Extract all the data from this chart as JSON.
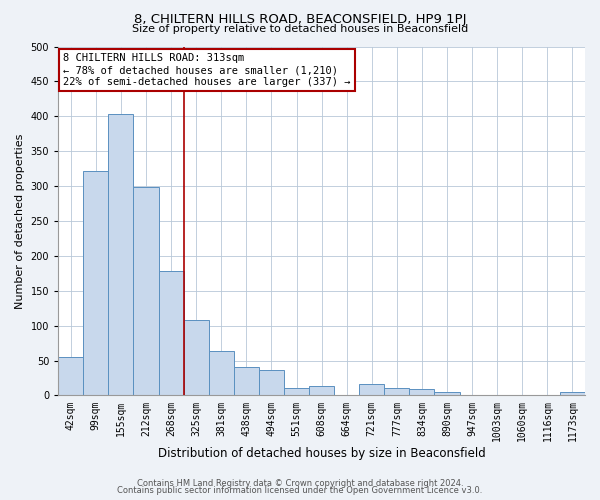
{
  "title": "8, CHILTERN HILLS ROAD, BEACONSFIELD, HP9 1PJ",
  "subtitle": "Size of property relative to detached houses in Beaconsfield",
  "xlabel": "Distribution of detached houses by size in Beaconsfield",
  "ylabel": "Number of detached properties",
  "bar_labels": [
    "42sqm",
    "99sqm",
    "155sqm",
    "212sqm",
    "268sqm",
    "325sqm",
    "381sqm",
    "438sqm",
    "494sqm",
    "551sqm",
    "608sqm",
    "664sqm",
    "721sqm",
    "777sqm",
    "834sqm",
    "890sqm",
    "947sqm",
    "1003sqm",
    "1060sqm",
    "1116sqm",
    "1173sqm"
  ],
  "bar_values": [
    55,
    322,
    403,
    298,
    178,
    108,
    63,
    41,
    37,
    10,
    13,
    1,
    16,
    10,
    9,
    5,
    1,
    0,
    1,
    0,
    5
  ],
  "bar_color": "#c8d8ec",
  "bar_edge_color": "#5a90c0",
  "vline_color": "#aa0000",
  "vline_pos": 4.5,
  "annotation_line1": "8 CHILTERN HILLS ROAD: 313sqm",
  "annotation_line2": "← 78% of detached houses are smaller (1,210)",
  "annotation_line3": "22% of semi-detached houses are larger (337) →",
  "annotation_box_edge_color": "#aa0000",
  "ylim": [
    0,
    500
  ],
  "yticks": [
    0,
    50,
    100,
    150,
    200,
    250,
    300,
    350,
    400,
    450,
    500
  ],
  "footer1": "Contains HM Land Registry data © Crown copyright and database right 2024.",
  "footer2": "Contains public sector information licensed under the Open Government Licence v3.0.",
  "background_color": "#eef2f7",
  "plot_bg_color": "#ffffff",
  "grid_color": "#b8c8d8",
  "title_fontsize": 9.5,
  "subtitle_fontsize": 8,
  "ylabel_fontsize": 8,
  "xlabel_fontsize": 8.5,
  "tick_fontsize": 7,
  "annotation_fontsize": 7.5,
  "footer_fontsize": 6
}
